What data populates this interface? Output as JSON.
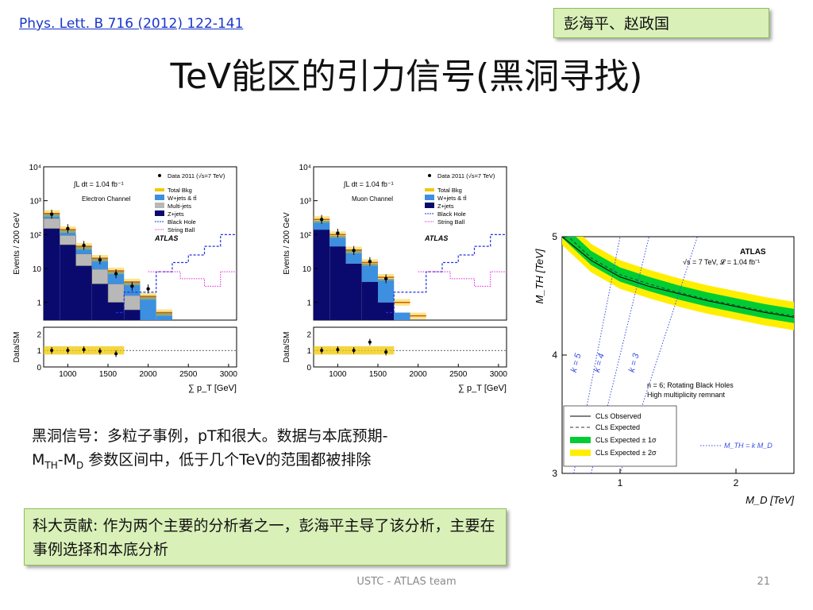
{
  "slide": {
    "reference": "Phys. Lett. B 716 (2012) 122-141",
    "authors": "彭海平、赵政国",
    "title": "TeV能区的引力信号(黑洞寻找)",
    "description_line1": "黑洞信号：多粒子事例，pT和很大。数据与本底预期-",
    "description_line2_parts": [
      "M",
      "TH",
      "-M",
      "D",
      " 参数区间中，低于几个TeV的范围都被排除"
    ],
    "contribution": "科大贡献: 作为两个主要的分析者之一，彭海平主导了该分析，主要在事例选择和本底分析",
    "footer": "USTC - ATLAS team",
    "page_number": "21"
  },
  "colors": {
    "highlight_box": "#d9f0b8",
    "link": "#1a35c8",
    "wjets": "#3d8fe0",
    "multijets": "#b8b8b8",
    "zjets": "#0a0a6e",
    "total_bkg": "#f0c800",
    "cl_green": "#00cc33",
    "cl_yellow": "#ffee00"
  },
  "chart_data": [
    {
      "type": "bar",
      "channel": "Electron Channel",
      "ylabel": "Events / 200 GeV",
      "ratio_ylabel": "Data/SM",
      "xlabel": "∑ p_T [GeV]",
      "lumi_label": "∫L dt = 1.04 fb⁻¹",
      "atlas_label": "ATLAS",
      "legend": [
        "Data 2011 (√s=7 TeV)",
        "Total Bkg",
        "W+jets & tt̄",
        "Multi-jets",
        "Z+jets",
        "Black Hole",
        "String Ball"
      ],
      "y_ticks": [
        "10⁴",
        "10³",
        "10²",
        "10",
        "1"
      ],
      "ratio_ticks": [
        "2",
        "1",
        "0"
      ],
      "x_ticks": [
        "1000",
        "1500",
        "2000",
        "2500",
        "3000"
      ],
      "xlim": [
        700,
        3100
      ],
      "ylim_log": [
        0.3,
        10000
      ],
      "bin_centers": [
        800,
        1000,
        1200,
        1400,
        1600,
        1800,
        2000,
        2200,
        2400
      ],
      "zjets": [
        150,
        50,
        12,
        3.5,
        1.0,
        0.6,
        0,
        0,
        0
      ],
      "multijets": [
        150,
        45,
        15,
        6,
        2.5,
        1.0,
        0,
        0,
        0
      ],
      "wjets": [
        120,
        45,
        18,
        10,
        5,
        2.5,
        1.5,
        0.5,
        0
      ],
      "total_bkg": [
        420,
        140,
        45,
        20,
        8.5,
        4,
        1.5,
        0.5,
        0.3
      ],
      "data": [
        400,
        150,
        48,
        18,
        7,
        3,
        2.5,
        0,
        0
      ],
      "ratio": [
        1.0,
        1.0,
        1.05,
        0.95,
        0.8
      ]
    },
    {
      "type": "bar",
      "channel": "Muon Channel",
      "ylabel": "Events / 200 GeV",
      "ratio_ylabel": "Data/SM",
      "xlabel": "∑ p_T [GeV]",
      "lumi_label": "∫L dt = 1.04 fb⁻¹",
      "atlas_label": "ATLAS",
      "legend": [
        "Data 2011 (√s=7 TeV)",
        "Total Bkg",
        "W+jets & tt̄",
        "Z+jets",
        "Black Hole",
        "String Ball"
      ],
      "y_ticks": [
        "10⁴",
        "10³",
        "10²",
        "10",
        "1"
      ],
      "ratio_ticks": [
        "2",
        "1",
        "0"
      ],
      "x_ticks": [
        "1000",
        "1500",
        "2000",
        "2500",
        "3000"
      ],
      "xlim": [
        700,
        3100
      ],
      "ylim_log": [
        0.3,
        10000
      ],
      "bin_centers": [
        800,
        1000,
        1200,
        1400,
        1600,
        1800,
        2000,
        2200,
        2400
      ],
      "zjets": [
        140,
        45,
        14,
        4,
        1.0,
        0,
        0,
        0,
        0
      ],
      "wjets": [
        120,
        48,
        20,
        10,
        4,
        0.5,
        0,
        0,
        0
      ],
      "total_bkg": [
        280,
        100,
        35,
        15,
        5.5,
        1.0,
        0.4,
        0.3,
        0.3
      ],
      "data": [
        280,
        110,
        34,
        16,
        5,
        0,
        0,
        0,
        0
      ],
      "ratio": [
        1.0,
        1.05,
        1.0,
        1.5,
        0.9
      ]
    },
    {
      "type": "line",
      "xlabel": "M_D [TeV]",
      "ylabel": "M_TH [TeV]",
      "x_ticks": [
        "1",
        "2"
      ],
      "y_ticks": [
        "5",
        "4",
        "3"
      ],
      "xlim": [
        0.5,
        2.5
      ],
      "ylim": [
        3,
        5
      ],
      "atlas_label": "ATLAS",
      "energy_label": "√s = 7 TeV, 𝓛 = 1.04 fb⁻¹",
      "model_label": "n = 6; Rotating Black Holes",
      "model_label2": "High multiplicity remnant",
      "legend": [
        "CLs Observed",
        "CLs Expected",
        "CLs Expected ± 1σ",
        "CLs Expected ± 2σ"
      ],
      "line_label": "M_TH = k M_D",
      "k_labels": [
        "k = 5",
        "k = 4",
        "k = 3"
      ],
      "x": [
        0.5,
        0.75,
        1.0,
        1.25,
        1.5,
        1.75,
        2.0,
        2.25,
        2.5
      ],
      "observed": [
        5.0,
        4.8,
        4.66,
        4.58,
        4.52,
        4.46,
        4.41,
        4.36,
        4.32
      ],
      "expected": [
        5.05,
        4.82,
        4.68,
        4.6,
        4.53,
        4.47,
        4.42,
        4.37,
        4.33
      ]
    }
  ]
}
